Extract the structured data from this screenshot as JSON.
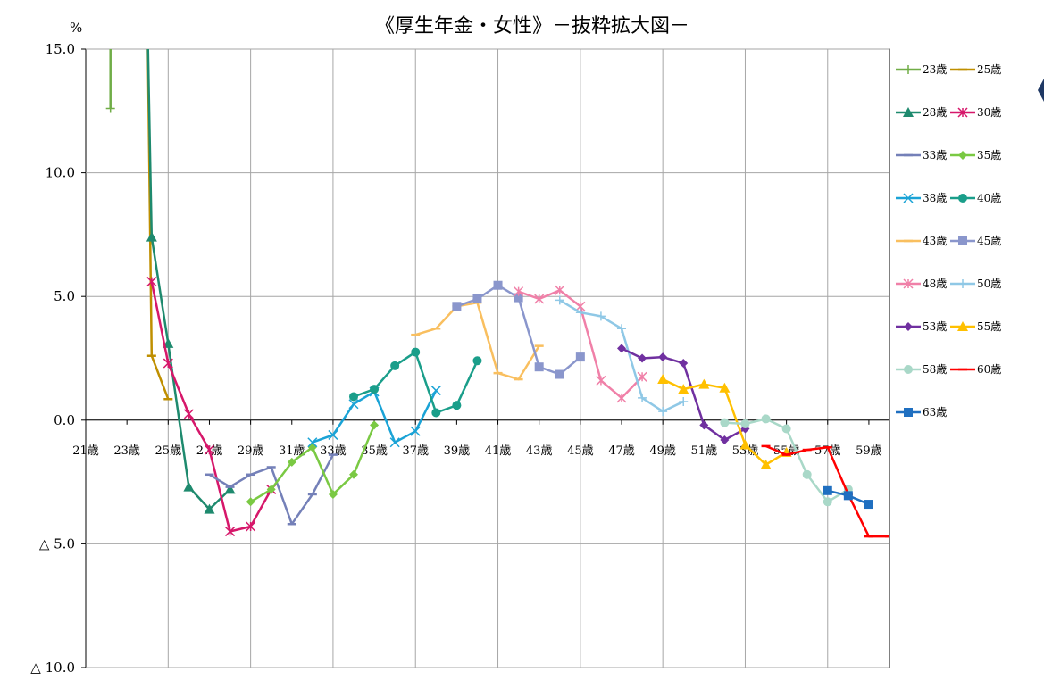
{
  "chart_data": {
    "type": "line",
    "title": "《厚生年金・女性》－抜粋拡大図－",
    "unit_label": "%",
    "ylim": [
      -10,
      15
    ],
    "y_ticks": [
      {
        "value": 15,
        "label": "15.0"
      },
      {
        "value": 10,
        "label": "10.0"
      },
      {
        "value": 5,
        "label": "5.0"
      },
      {
        "value": 0,
        "label": "0.0"
      },
      {
        "value": -5,
        "label": "△ 5.0"
      },
      {
        "value": -10,
        "label": "△ 10.0"
      }
    ],
    "xlim": [
      21,
      60
    ],
    "x_ticks": [
      {
        "value": 21,
        "label": "21歳"
      },
      {
        "value": 23,
        "label": "23歳"
      },
      {
        "value": 25,
        "label": "25歳"
      },
      {
        "value": 27,
        "label": "27歳"
      },
      {
        "value": 29,
        "label": "29歳"
      },
      {
        "value": 31,
        "label": "31歳"
      },
      {
        "value": 33,
        "label": "33歳"
      },
      {
        "value": 35,
        "label": "35歳"
      },
      {
        "value": 37,
        "label": "37歳"
      },
      {
        "value": 39,
        "label": "39歳"
      },
      {
        "value": 41,
        "label": "41歳"
      },
      {
        "value": 43,
        "label": "43歳"
      },
      {
        "value": 45,
        "label": "45歳"
      },
      {
        "value": 47,
        "label": "47歳"
      },
      {
        "value": 49,
        "label": "49歳"
      },
      {
        "value": 51,
        "label": "51歳"
      },
      {
        "value": 53,
        "label": "53歳"
      },
      {
        "value": 55,
        "label": "55歳"
      },
      {
        "value": 57,
        "label": "57歳"
      },
      {
        "value": 59,
        "label": "59歳"
      }
    ],
    "grid": true,
    "legend_position": "right",
    "series": [
      {
        "name": "23歳",
        "color": "#70ad47",
        "marker": "plus",
        "x": [
          22.2,
          22.2
        ],
        "y": [
          12.6,
          16.0
        ]
      },
      {
        "name": "25歳",
        "color": "#bf8f00",
        "marker": "dash",
        "x": [
          24.0,
          24.2,
          25.0
        ],
        "y": [
          16.0,
          2.6,
          0.85
        ]
      },
      {
        "name": "28歳",
        "color": "#1e8a6e",
        "marker": "triangle",
        "x": [
          24.0,
          24.2,
          25.0,
          26.0,
          27.0,
          28.0
        ],
        "y": [
          16.0,
          7.4,
          3.1,
          -2.7,
          -3.6,
          -2.8
        ]
      },
      {
        "name": "30歳",
        "color": "#d6176a",
        "marker": "star",
        "x": [
          24.2,
          25.0,
          26.0,
          27.0,
          28.0,
          29.0,
          30.0
        ],
        "y": [
          5.6,
          2.3,
          0.25,
          -1.2,
          -4.5,
          -4.3,
          -2.8
        ]
      },
      {
        "name": "33歳",
        "color": "#7480b8",
        "marker": "dash",
        "x": [
          27.0,
          28.0,
          29.0,
          30.0,
          31.0,
          32.0,
          33.0
        ],
        "y": [
          -2.2,
          -2.7,
          -2.2,
          -1.9,
          -4.2,
          -3.0,
          -1.4
        ]
      },
      {
        "name": "35歳",
        "color": "#7ac943",
        "marker": "diamond",
        "x": [
          29.0,
          30.0,
          31.0,
          32.0,
          33.0,
          34.0,
          35.0
        ],
        "y": [
          -3.3,
          -2.8,
          -1.7,
          -1.1,
          -3.0,
          -2.2,
          -0.2
        ]
      },
      {
        "name": "38歳",
        "color": "#1aa3d6",
        "marker": "x",
        "x": [
          32.0,
          33.0,
          34.0,
          35.0,
          36.0,
          37.0,
          38.0
        ],
        "y": [
          -0.9,
          -0.6,
          0.65,
          1.15,
          -0.9,
          -0.45,
          1.2
        ]
      },
      {
        "name": "40歳",
        "color": "#1a9e8a",
        "marker": "circle",
        "x": [
          34.0,
          35.0,
          36.0,
          37.0,
          38.0,
          39.0,
          40.0
        ],
        "y": [
          0.95,
          1.25,
          2.2,
          2.75,
          0.3,
          0.6,
          2.4
        ]
      },
      {
        "name": "43歳",
        "color": "#f9bf5f",
        "marker": "dash",
        "x": [
          37.0,
          38.0,
          39.0,
          40.0,
          41.0,
          42.0,
          43.0
        ],
        "y": [
          3.45,
          3.7,
          4.6,
          4.75,
          1.9,
          1.65,
          3.0
        ]
      },
      {
        "name": "45歳",
        "color": "#8a96cc",
        "marker": "square",
        "x": [
          39.0,
          40.0,
          41.0,
          42.0,
          43.0,
          44.0,
          45.0
        ],
        "y": [
          4.6,
          4.9,
          5.45,
          4.95,
          2.15,
          1.85,
          2.55
        ]
      },
      {
        "name": "48歳",
        "color": "#f080a8",
        "marker": "star",
        "x": [
          42.0,
          43.0,
          44.0,
          45.0,
          46.0,
          47.0,
          48.0
        ],
        "y": [
          5.2,
          4.9,
          5.25,
          4.6,
          1.6,
          0.9,
          1.75
        ]
      },
      {
        "name": "50歳",
        "color": "#8fc8e6",
        "marker": "plus",
        "x": [
          44.0,
          45.0,
          46.0,
          47.0,
          48.0,
          49.0,
          50.0
        ],
        "y": [
          4.85,
          4.35,
          4.2,
          3.7,
          0.9,
          0.35,
          0.75
        ]
      },
      {
        "name": "53歳",
        "color": "#7030a0",
        "marker": "diamond",
        "x": [
          47.0,
          48.0,
          49.0,
          50.0,
          51.0,
          52.0,
          53.0
        ],
        "y": [
          2.9,
          2.5,
          2.55,
          2.3,
          -0.2,
          -0.8,
          -0.35
        ]
      },
      {
        "name": "55歳",
        "color": "#ffc000",
        "marker": "triangle",
        "x": [
          49.0,
          50.0,
          51.0,
          52.0,
          53.0,
          54.0,
          55.0
        ],
        "y": [
          1.65,
          1.25,
          1.45,
          1.3,
          -1.0,
          -1.8,
          -1.3
        ]
      },
      {
        "name": "58歳",
        "color": "#a9d8c8",
        "marker": "circle",
        "x": [
          52.0,
          53.0,
          54.0,
          55.0,
          56.0,
          57.0,
          58.0
        ],
        "y": [
          -0.1,
          -0.15,
          0.05,
          -0.35,
          -2.2,
          -3.3,
          -2.8
        ]
      },
      {
        "name": "60歳",
        "color": "#ff0000",
        "marker": "dash",
        "x": [
          54.0,
          55.0,
          56.0,
          57.0,
          58.0,
          59.0,
          60.0
        ],
        "y": [
          -1.05,
          -1.4,
          -1.2,
          -1.1,
          -3.0,
          -4.7,
          -4.7
        ]
      },
      {
        "name": "63歳",
        "color": "#1f6fc0",
        "marker": "square",
        "x": [
          57.0,
          58.0,
          59.0
        ],
        "y": [
          -2.85,
          -3.05,
          -3.4
        ]
      }
    ]
  }
}
